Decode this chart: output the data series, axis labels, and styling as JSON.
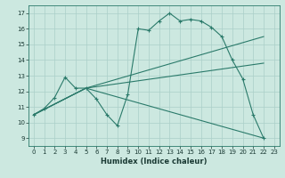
{
  "xlabel": "Humidex (Indice chaleur)",
  "xlim": [
    -0.5,
    23.5
  ],
  "ylim": [
    8.5,
    17.5
  ],
  "xticks": [
    0,
    1,
    2,
    3,
    4,
    5,
    6,
    7,
    8,
    9,
    10,
    11,
    12,
    13,
    14,
    15,
    16,
    17,
    18,
    19,
    20,
    21,
    22,
    23
  ],
  "yticks": [
    9,
    10,
    11,
    12,
    13,
    14,
    15,
    16,
    17
  ],
  "bg_color": "#cce8e0",
  "grid_color": "#aacfc8",
  "line_color": "#2a7a6a",
  "main_line": {
    "x": [
      0,
      1,
      2,
      3,
      4,
      5,
      6,
      7,
      8,
      9,
      10,
      11,
      12,
      13,
      14,
      15,
      16,
      17,
      18,
      19,
      20,
      21,
      22
    ],
    "y": [
      10.5,
      10.9,
      11.6,
      12.9,
      12.2,
      12.2,
      11.5,
      10.5,
      9.8,
      11.8,
      16.0,
      15.9,
      16.5,
      17.0,
      16.5,
      16.6,
      16.5,
      16.1,
      15.5,
      14.0,
      12.8,
      10.5,
      9.0
    ]
  },
  "straight_lines": [
    {
      "x": [
        0,
        5,
        22
      ],
      "y": [
        10.5,
        12.2,
        9.0
      ]
    },
    {
      "x": [
        0,
        5,
        22
      ],
      "y": [
        10.5,
        12.2,
        15.5
      ]
    },
    {
      "x": [
        0,
        5,
        22
      ],
      "y": [
        10.5,
        12.2,
        13.8
      ]
    }
  ]
}
